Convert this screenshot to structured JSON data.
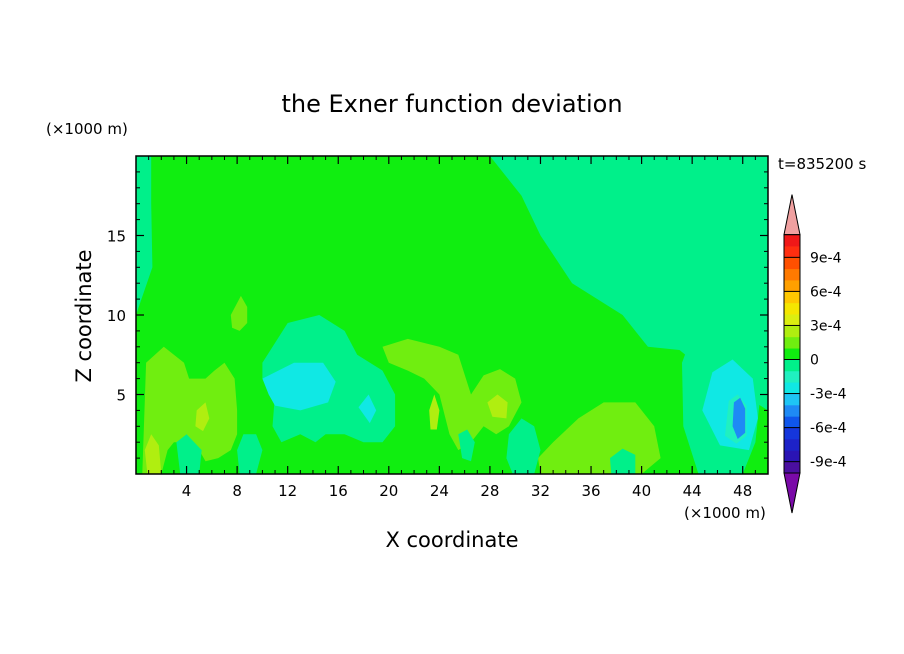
{
  "chart_data": {
    "type": "heatmap",
    "title": "the Exner function deviation",
    "xlabel": "X coordinate",
    "ylabel": "Z coordinate",
    "x_unit": "(×1000 m)",
    "y_unit": "(×1000 m)",
    "time_label": "t=835200 s",
    "xlim": [
      0,
      50
    ],
    "ylim": [
      0,
      20
    ],
    "x_ticks": [
      4,
      8,
      12,
      16,
      20,
      24,
      28,
      32,
      36,
      40,
      44,
      48
    ],
    "x_tick_labels": [
      "4",
      "8",
      "12",
      "16",
      "20",
      "24",
      "28",
      "32",
      "36",
      "40",
      "44",
      "48"
    ],
    "y_ticks": [
      5,
      10,
      15
    ],
    "y_tick_labels": [
      "5",
      "10",
      "15"
    ],
    "colorbar": {
      "levels": [
        -0.0011,
        -0.001,
        -0.0009,
        -0.0008,
        -0.0007,
        -0.0006,
        -0.0005,
        -0.0004,
        -0.0003,
        -0.0002,
        -0.0001,
        0,
        0.0001,
        0.0002,
        0.0003,
        0.0004,
        0.0005,
        0.0006,
        0.0007,
        0.0008,
        0.0009,
        0.001,
        0.0011
      ],
      "colors": [
        "#7a0aa8",
        "#4a0fa0",
        "#2a14b4",
        "#1d22c8",
        "#1536dc",
        "#0f56ec",
        "#1e8af5",
        "#1ec5f5",
        "#10e8e4",
        "#20f0c0",
        "#00f08a",
        "#10ee10",
        "#70ee10",
        "#b0ee10",
        "#dcee10",
        "#f5e600",
        "#ffc800",
        "#ffa000",
        "#ff7a00",
        "#ff5000",
        "#ff2e10",
        "#f01818",
        "#f0a0a0"
      ],
      "tick_labels": [
        "9e-4",
        "6e-4",
        "3e-4",
        "0",
        "-3e-4",
        "-6e-4",
        "-9e-4"
      ],
      "tick_values": [
        0.0009,
        0.0006,
        0.0003,
        0,
        -0.0003,
        -0.0006,
        -0.0009
      ]
    },
    "background_color": "#00f08a",
    "regions": [
      {
        "level": 5e-05,
        "color": "#10ee10",
        "points": [
          [
            1.2,
            20
          ],
          [
            28,
            20
          ],
          [
            30.5,
            17.5
          ],
          [
            32,
            15
          ],
          [
            34.5,
            12
          ],
          [
            38.5,
            10
          ],
          [
            40.5,
            8
          ],
          [
            43,
            7.8
          ],
          [
            45,
            6.5
          ],
          [
            48,
            5
          ],
          [
            50,
            4
          ],
          [
            50,
            0
          ],
          [
            0,
            0
          ],
          [
            0,
            10
          ],
          [
            1.3,
            13
          ],
          [
            1.2,
            17
          ]
        ]
      },
      {
        "level": 0.00015,
        "color": "#70ee10",
        "points": [
          [
            0.5,
            0
          ],
          [
            0.8,
            7
          ],
          [
            2.2,
            8
          ],
          [
            3.8,
            7
          ],
          [
            4.2,
            6
          ],
          [
            5.5,
            6
          ],
          [
            6.2,
            6.5
          ],
          [
            7,
            7
          ],
          [
            7.8,
            6
          ],
          [
            8,
            4
          ],
          [
            8,
            2.5
          ],
          [
            7.5,
            1.5
          ],
          [
            6.5,
            1
          ],
          [
            5.5,
            0.8
          ],
          [
            5,
            1.5
          ],
          [
            4,
            2
          ],
          [
            3,
            2
          ],
          [
            2.5,
            1.5
          ],
          [
            2,
            0
          ]
        ]
      },
      {
        "level": 0.00015,
        "color": "#70ee10",
        "points": [
          [
            7.5,
            10
          ],
          [
            8.3,
            11.2
          ],
          [
            8.8,
            10.5
          ],
          [
            8.8,
            9.5
          ],
          [
            8.2,
            9
          ],
          [
            7.6,
            9.2
          ]
        ]
      },
      {
        "level": 0.00015,
        "color": "#70ee10",
        "points": [
          [
            19.5,
            8
          ],
          [
            21.5,
            8.5
          ],
          [
            24,
            8
          ],
          [
            25.5,
            7.5
          ],
          [
            26.5,
            5
          ],
          [
            27.5,
            6.2
          ],
          [
            28.8,
            6.6
          ],
          [
            30,
            6
          ],
          [
            30.5,
            4.5
          ],
          [
            29.5,
            3
          ],
          [
            28.5,
            2.5
          ],
          [
            27.5,
            3
          ],
          [
            26.5,
            2
          ],
          [
            25.5,
            1.5
          ],
          [
            24.8,
            2.5
          ],
          [
            24,
            5
          ],
          [
            22.8,
            6
          ],
          [
            21.5,
            6.5
          ],
          [
            20,
            7
          ]
        ]
      },
      {
        "level": 0.00015,
        "color": "#70ee10",
        "points": [
          [
            33,
            2
          ],
          [
            35,
            3.5
          ],
          [
            37,
            4.5
          ],
          [
            39.5,
            4.5
          ],
          [
            41,
            3
          ],
          [
            41.5,
            1
          ],
          [
            40,
            0
          ],
          [
            32,
            0
          ],
          [
            31.8,
            1
          ]
        ]
      },
      {
        "level": 0.00025,
        "color": "#b0ee10",
        "points": [
          [
            0.7,
            1.5
          ],
          [
            0.9,
            0
          ],
          [
            2,
            0
          ],
          [
            1.8,
            1.8
          ],
          [
            1.2,
            2.5
          ]
        ]
      },
      {
        "level": 0.00025,
        "color": "#b0ee10",
        "points": [
          [
            4.8,
            4
          ],
          [
            5.5,
            4.5
          ],
          [
            5.8,
            3.5
          ],
          [
            5.3,
            2.7
          ],
          [
            4.7,
            3
          ]
        ]
      },
      {
        "level": 0.00025,
        "color": "#b0ee10",
        "points": [
          [
            23.2,
            4
          ],
          [
            23.6,
            5
          ],
          [
            24,
            4
          ],
          [
            23.8,
            2.8
          ],
          [
            23.3,
            2.8
          ]
        ]
      },
      {
        "level": 0.00025,
        "color": "#b0ee10",
        "points": [
          [
            27.8,
            4.5
          ],
          [
            28.6,
            5
          ],
          [
            29.4,
            4.5
          ],
          [
            29.3,
            3.5
          ],
          [
            28.2,
            3.6
          ]
        ]
      },
      {
        "level": -5e-05,
        "color": "#00f08a",
        "points": [
          [
            10,
            7
          ],
          [
            12,
            9.5
          ],
          [
            14.5,
            10
          ],
          [
            16.5,
            9
          ],
          [
            17.5,
            7.5
          ],
          [
            19.5,
            6.5
          ],
          [
            20.5,
            5
          ],
          [
            20.5,
            3
          ],
          [
            19.5,
            2
          ],
          [
            18,
            2
          ],
          [
            16.5,
            2.5
          ],
          [
            15,
            2.5
          ],
          [
            14.2,
            2
          ],
          [
            13,
            2.5
          ],
          [
            11.5,
            2
          ],
          [
            10.8,
            3
          ],
          [
            11,
            5
          ],
          [
            10,
            6
          ]
        ]
      },
      {
        "level": -5e-05,
        "color": "#00f08a",
        "points": [
          [
            3.2,
            2
          ],
          [
            4,
            2.5
          ],
          [
            5.2,
            1.5
          ],
          [
            5,
            0
          ],
          [
            3.5,
            0
          ]
        ]
      },
      {
        "level": -5e-05,
        "color": "#00f08a",
        "points": [
          [
            8,
            1.5
          ],
          [
            8.5,
            2.5
          ],
          [
            9.5,
            2.5
          ],
          [
            10,
            1.5
          ],
          [
            9.5,
            0
          ],
          [
            8.2,
            0
          ]
        ]
      },
      {
        "level": -5e-05,
        "color": "#00f08a",
        "points": [
          [
            25.5,
            2.5
          ],
          [
            26.2,
            2.8
          ],
          [
            26.8,
            2
          ],
          [
            26.5,
            0.8
          ],
          [
            25.8,
            1
          ]
        ]
      },
      {
        "level": -5e-05,
        "color": "#00f08a",
        "points": [
          [
            29.5,
            2.5
          ],
          [
            30.5,
            3.5
          ],
          [
            31.5,
            3
          ],
          [
            32,
            1.5
          ],
          [
            31.5,
            0
          ],
          [
            29.8,
            0
          ],
          [
            29.3,
            1
          ]
        ]
      },
      {
        "level": -5e-05,
        "color": "#00f08a",
        "points": [
          [
            37.5,
            1
          ],
          [
            38.5,
            1.6
          ],
          [
            39.5,
            1.2
          ],
          [
            39.5,
            0
          ],
          [
            37.6,
            0
          ]
        ]
      },
      {
        "level": -5e-05,
        "color": "#00f08a",
        "points": [
          [
            43.2,
            7
          ],
          [
            44.5,
            9.8
          ],
          [
            46,
            10.6
          ],
          [
            47.6,
            10.2
          ],
          [
            49,
            8
          ],
          [
            49.4,
            5
          ],
          [
            49,
            2
          ],
          [
            48,
            0
          ],
          [
            44.5,
            0
          ],
          [
            43.3,
            3
          ]
        ]
      },
      {
        "level": -0.00015,
        "color": "#10e8e4",
        "points": [
          [
            10,
            6
          ],
          [
            12.5,
            7
          ],
          [
            14.8,
            7
          ],
          [
            15.8,
            5.8
          ],
          [
            15.2,
            4.5
          ],
          [
            13,
            4
          ],
          [
            11,
            4.3
          ],
          [
            10.5,
            5
          ]
        ]
      },
      {
        "level": -0.00015,
        "color": "#10e8e4",
        "points": [
          [
            17.6,
            4.2
          ],
          [
            18.4,
            5
          ],
          [
            19,
            4
          ],
          [
            18.5,
            3.2
          ]
        ]
      },
      {
        "level": -0.00015,
        "color": "#10e8e4",
        "points": [
          [
            44.8,
            4
          ],
          [
            45.6,
            6.4
          ],
          [
            47.2,
            7.2
          ],
          [
            48.8,
            6
          ],
          [
            49.2,
            3.5
          ],
          [
            48.5,
            1.5
          ],
          [
            46.2,
            1.8
          ]
        ]
      },
      {
        "level": -0.00025,
        "color": "#20f0c0",
        "points": [
          [
            46.6,
            2.4
          ],
          [
            46.9,
            4.6
          ],
          [
            47.6,
            5
          ],
          [
            48.3,
            4.3
          ],
          [
            48.3,
            2.4
          ],
          [
            47.5,
            1.9
          ]
        ]
      },
      {
        "level": -0.00035,
        "color": "#1e8af5",
        "points": [
          [
            47.2,
            3
          ],
          [
            47.3,
            4.5
          ],
          [
            47.8,
            4.8
          ],
          [
            48.2,
            4.1
          ],
          [
            48.2,
            2.6
          ],
          [
            47.6,
            2.2
          ]
        ]
      }
    ]
  }
}
